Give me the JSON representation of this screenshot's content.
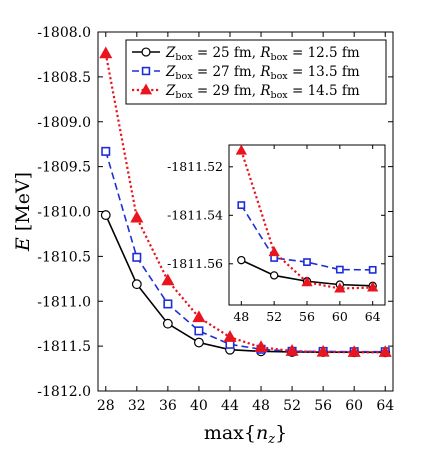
{
  "chart_data": {
    "type": "line",
    "xlabel": "max{n_z}",
    "ylabel": "E [MeV]",
    "xlim": [
      27,
      65
    ],
    "ylim": [
      -1812.0,
      -1808.0
    ],
    "xticks": [
      28,
      32,
      36,
      40,
      44,
      48,
      52,
      56,
      60,
      64
    ],
    "xtick_labels": [
      "28",
      "32",
      "36",
      "40",
      "44",
      "48",
      "52",
      "56",
      "60",
      "64"
    ],
    "yticks": [
      -1808.0,
      -1808.5,
      -1809.0,
      -1809.5,
      -1810.0,
      -1810.5,
      -1811.0,
      -1811.5,
      -1812.0
    ],
    "ytick_labels": [
      "-1808.0",
      "-1808.5",
      "-1809.0",
      "-1809.5",
      "-1810.0",
      "-1810.5",
      "-1811.0",
      "-1811.5",
      "-1812.0"
    ],
    "grid": false,
    "legend_position": "top-right",
    "series": [
      {
        "name": "Z_box = 25 fm, R_box = 12.5 fm",
        "legend_label": "Z_box = 25 fm, R_box = 12.5 fm",
        "color": "#000000",
        "dash": "solid",
        "marker": "circle",
        "x": [
          28,
          32,
          36,
          40,
          44,
          48,
          52,
          56,
          60,
          64
        ],
        "y": [
          -1810.04,
          -1810.81,
          -1811.25,
          -1811.46,
          -1811.54,
          -1811.558,
          -1811.565,
          -1811.567,
          -1811.568,
          -1811.569
        ]
      },
      {
        "name": "Z_box = 27 fm, R_box = 13.5 fm",
        "legend_label": "Z_box = 27 fm, R_box = 13.5 fm",
        "color": "#1f2fd6",
        "dash": "dashed",
        "marker": "square",
        "x": [
          28,
          32,
          36,
          40,
          44,
          48,
          52,
          56,
          60,
          64
        ],
        "y": [
          -1809.33,
          -1810.51,
          -1811.03,
          -1811.33,
          -1811.48,
          -1811.535,
          -1811.558,
          -1811.559,
          -1811.562,
          -1811.562
        ]
      },
      {
        "name": "Z_box = 29 fm, R_box = 14.5 fm",
        "legend_label": "Z_box = 29 fm, R_box = 14.5 fm",
        "color": "#e8141e",
        "dash": "dotted",
        "marker": "triangle",
        "x": [
          28,
          32,
          36,
          40,
          44,
          48,
          52,
          56,
          60,
          64
        ],
        "y": [
          -1808.24,
          -1810.07,
          -1810.77,
          -1811.18,
          -1811.4,
          -1811.513,
          -1811.555,
          -1811.565,
          -1811.568,
          -1811.568
        ]
      }
    ],
    "inset": {
      "xlim": [
        46.5,
        65.5
      ],
      "ylim": [
        -1811.577,
        -1811.511
      ],
      "xticks": [
        48,
        52,
        56,
        60,
        64
      ],
      "xtick_labels": [
        "48",
        "52",
        "56",
        "60",
        "64"
      ],
      "yticks": [
        -1811.52,
        -1811.54,
        -1811.56
      ],
      "ytick_labels": [
        "-1811.52",
        "-1811.54",
        "-1811.56"
      ],
      "x": [
        48,
        52,
        56,
        60,
        64
      ],
      "series_y": [
        [
          -1811.5585,
          -1811.5648,
          -1811.5672,
          -1811.5686,
          -1811.5691
        ],
        [
          -1811.5358,
          -1811.5576,
          -1811.5593,
          -1811.5624,
          -1811.5625
        ],
        [
          -1811.5133,
          -1811.5552,
          -1811.5676,
          -1811.5702,
          -1811.5698
        ]
      ]
    }
  }
}
